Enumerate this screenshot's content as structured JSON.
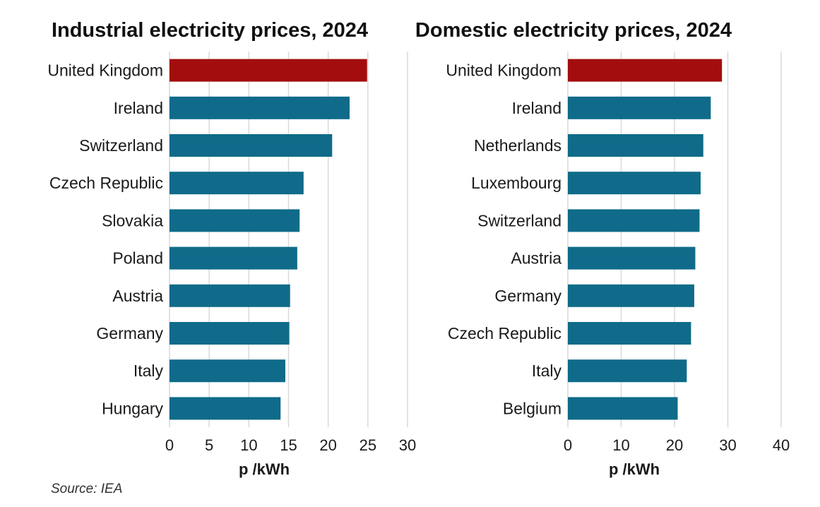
{
  "colors": {
    "highlight": "#a30d0d",
    "bar": "#0f6b89",
    "grid": "#d9d9d9",
    "text": "#1a1a1a"
  },
  "source": "Source: IEA",
  "chart_data": [
    {
      "type": "bar",
      "orientation": "horizontal",
      "title": "Industrial electricity prices, 2024",
      "xlabel": "p /kWh",
      "ylabel": "",
      "xlim": [
        0,
        30
      ],
      "ticks": [
        0,
        5,
        10,
        15,
        20,
        25,
        30
      ],
      "grid": true,
      "highlight": "United Kingdom",
      "categories": [
        "United Kingdom",
        "Ireland",
        "Switzerland",
        "Czech Republic",
        "Slovakia",
        "Poland",
        "Austria",
        "Germany",
        "Italy",
        "Hungary"
      ],
      "values": [
        24.9,
        22.7,
        20.5,
        16.9,
        16.4,
        16.1,
        15.2,
        15.1,
        14.6,
        14.0
      ]
    },
    {
      "type": "bar",
      "orientation": "horizontal",
      "title": "Domestic electricity prices, 2024",
      "xlabel": "p /kWh",
      "ylabel": "",
      "xlim": [
        0,
        40
      ],
      "ticks": [
        0,
        10,
        20,
        30,
        40
      ],
      "grid": true,
      "highlight": "United Kingdom",
      "categories": [
        "United Kingdom",
        "Ireland",
        "Netherlands",
        "Luxembourg",
        "Switzerland",
        "Austria",
        "Germany",
        "Czech Republic",
        "Italy",
        "Belgium"
      ],
      "values": [
        28.9,
        26.8,
        25.4,
        24.9,
        24.7,
        23.9,
        23.7,
        23.1,
        22.3,
        20.6
      ]
    }
  ]
}
